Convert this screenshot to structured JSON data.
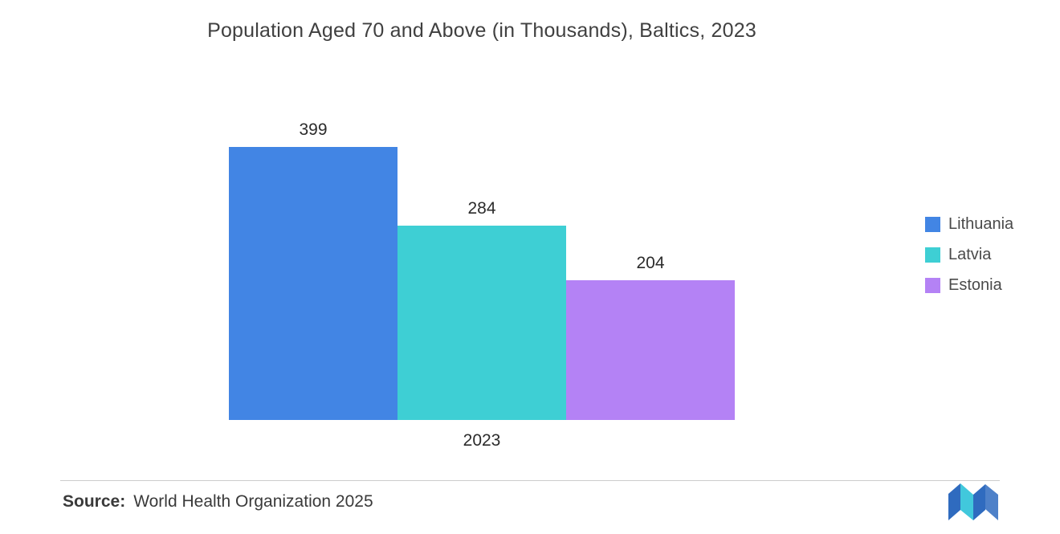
{
  "title": "Population Aged 70 and Above (in Thousands), Baltics, 2023",
  "chart_data": {
    "type": "bar",
    "title": "Population Aged 70 and Above (in Thousands), Baltics, 2023",
    "categories": [
      "2023"
    ],
    "series": [
      {
        "name": "Lithuania",
        "values": [
          399
        ],
        "color": "#4285E4"
      },
      {
        "name": "Latvia",
        "values": [
          284
        ],
        "color": "#3ECFD4"
      },
      {
        "name": "Estonia",
        "values": [
          204
        ],
        "color": "#B482F5"
      }
    ],
    "xlabel": "2023",
    "ylabel": "",
    "ylim": [
      0,
      430
    ],
    "grid": false,
    "legend_position": "right",
    "value_labels": [
      399,
      284,
      204
    ]
  },
  "footer": {
    "source_label": "Source:",
    "source_text": "World Health Organization 2025"
  },
  "logo": {
    "name": "mordor-intelligence-logo",
    "blue": "#2F6BBF",
    "teal": "#41C8DC"
  }
}
